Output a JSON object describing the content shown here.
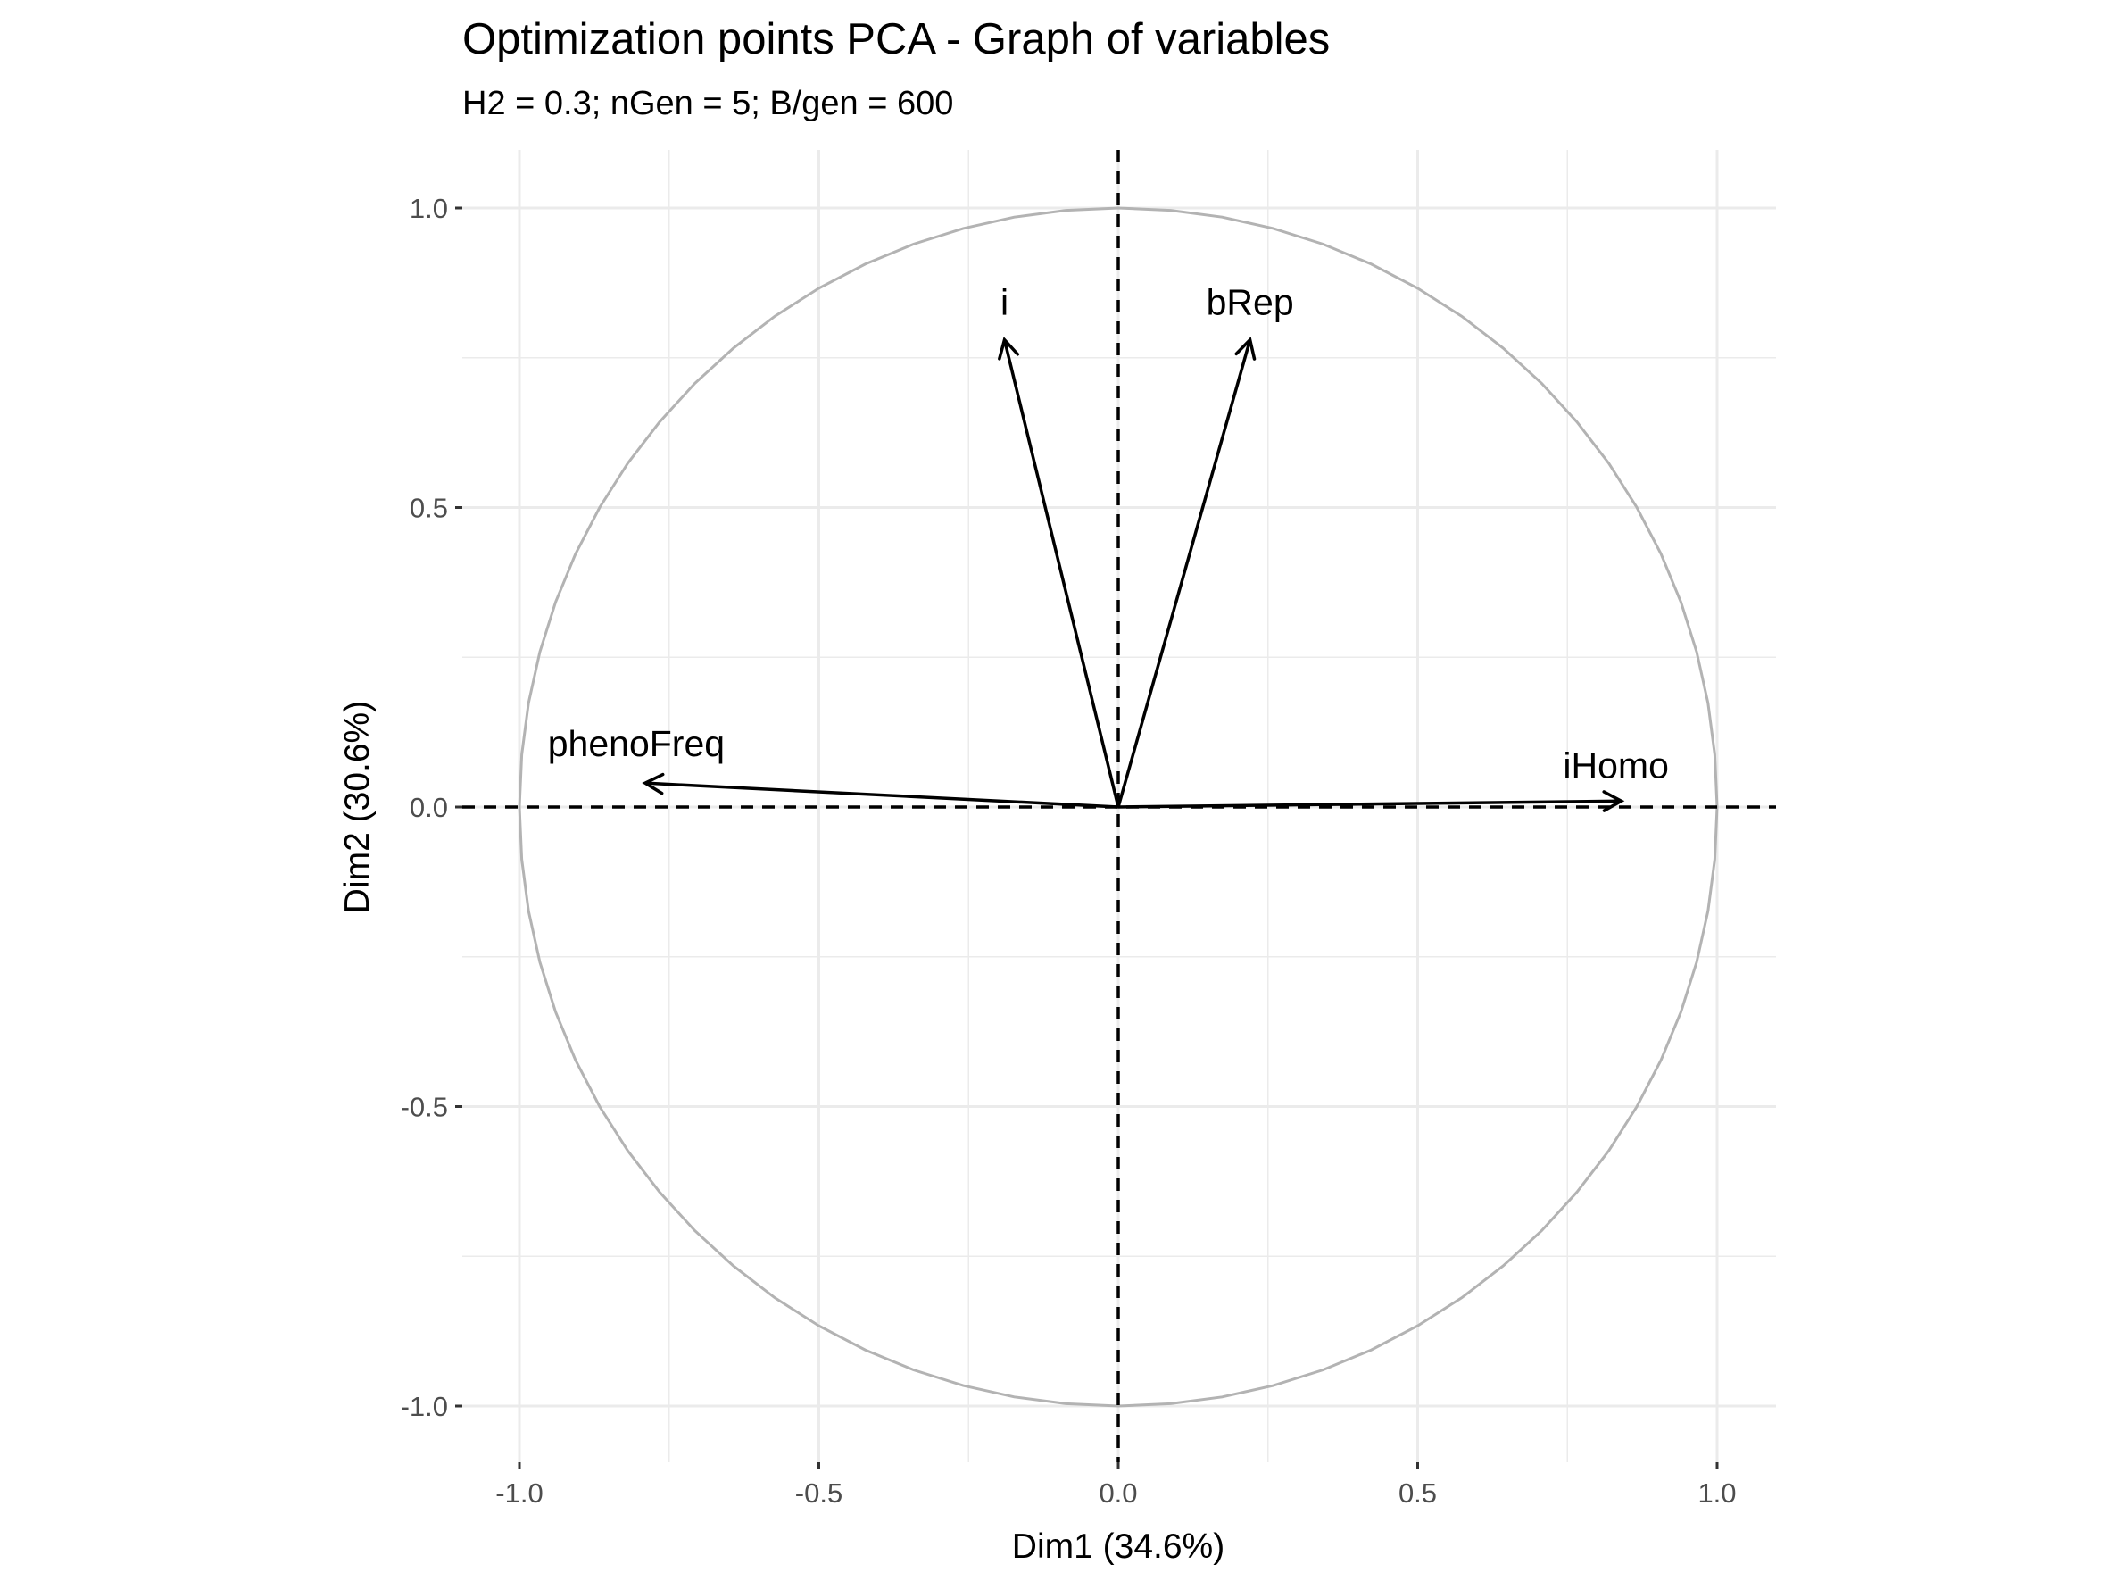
{
  "chart_data": {
    "type": "scatter",
    "title": "Optimization points PCA - Graph of variables",
    "subtitle": "H2 = 0.3; nGen = 5; B/gen = 600",
    "xlabel": "Dim1 (34.6%)",
    "ylabel": "Dim2 (30.6%)",
    "xlim": [
      -1.0,
      1.0
    ],
    "ylim": [
      -1.0,
      1.0
    ],
    "x_ticks": [
      -1.0,
      -0.5,
      0.0,
      0.5,
      1.0
    ],
    "y_ticks": [
      -1.0,
      -0.5,
      0.0,
      0.5,
      1.0
    ],
    "x_tick_labels": [
      "-1.0",
      "-0.5",
      "0.0",
      "0.5",
      "1.0"
    ],
    "y_tick_labels": [
      "-1.0",
      "-0.5",
      "0.0",
      "0.5",
      "1.0"
    ],
    "grid": true,
    "correlation_circle": true,
    "reference_lines": [
      0,
      0
    ],
    "variables": [
      {
        "name": "i",
        "x": -0.19,
        "y": 0.78
      },
      {
        "name": "bRep",
        "x": 0.22,
        "y": 0.78
      },
      {
        "name": "phenoFreq",
        "x": -0.79,
        "y": 0.04
      },
      {
        "name": "iHomo",
        "x": 0.84,
        "y": 0.01
      }
    ],
    "colors": {
      "background": "#ffffff",
      "grid": "#ebebeb",
      "circle": "#b3b3b3",
      "arrows": "#000000"
    }
  }
}
